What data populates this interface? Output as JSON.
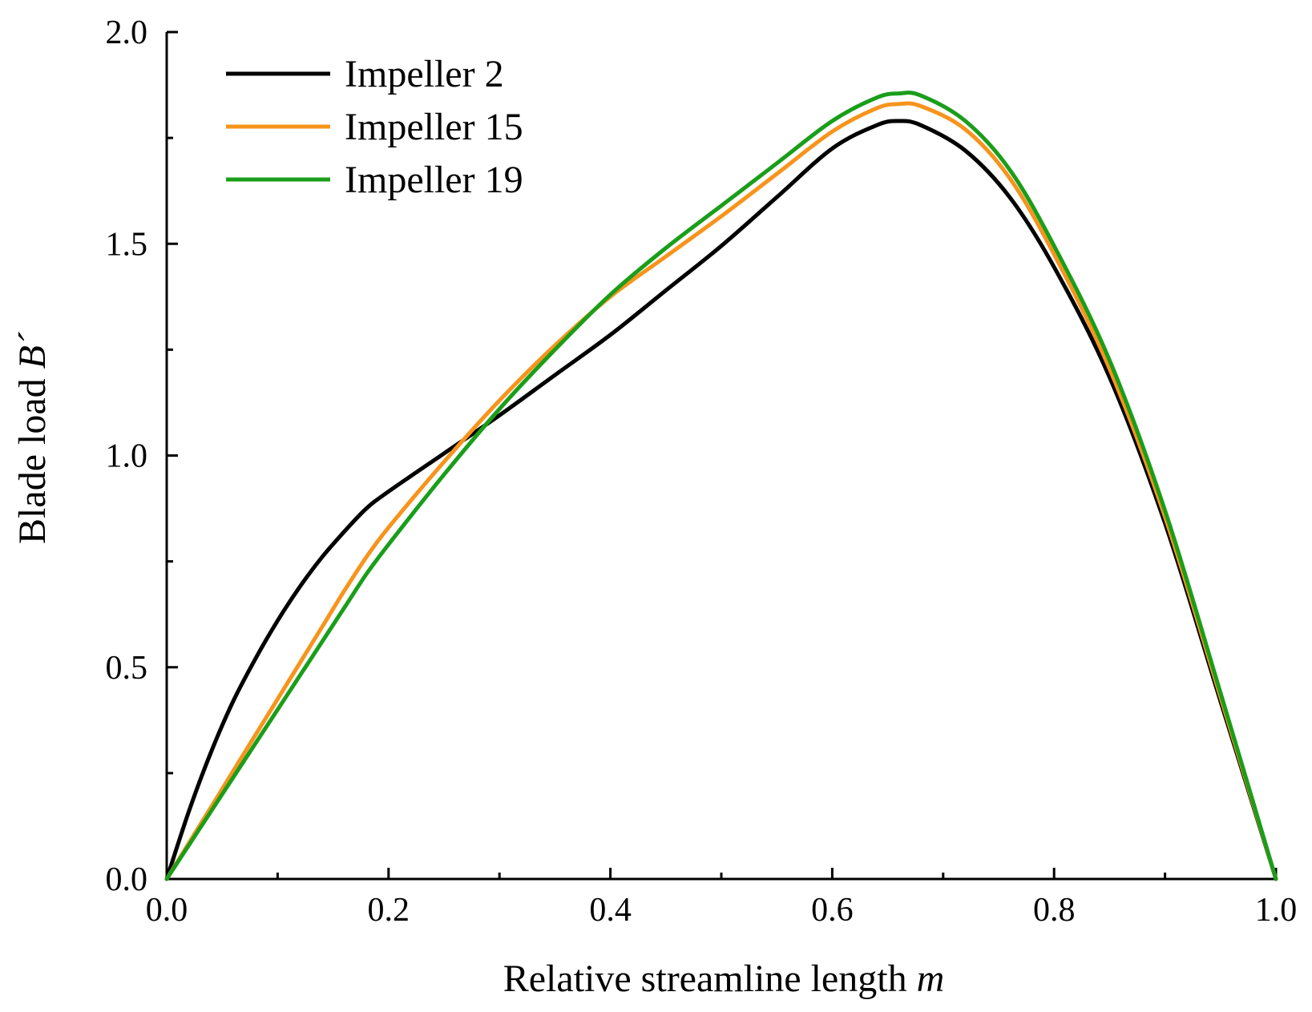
{
  "chart_data": {
    "type": "line",
    "title": "",
    "xlabel": "Relative streamline length",
    "xlabel_var": "m",
    "ylabel": "Blade load",
    "ylabel_var": "B´",
    "xlim": [
      0,
      1
    ],
    "ylim": [
      0,
      2
    ],
    "xticks": [
      0.0,
      0.2,
      0.4,
      0.6,
      0.8,
      1.0
    ],
    "xtick_labels": [
      "0.0",
      "0.2",
      "0.4",
      "0.6",
      "0.8",
      "1.0"
    ],
    "xminor": [
      0.1,
      0.3,
      0.5,
      0.7,
      0.9
    ],
    "yticks": [
      0.0,
      0.5,
      1.0,
      1.5,
      2.0
    ],
    "ytick_labels": [
      "0.0",
      "0.5",
      "1.0",
      "1.5",
      "2.0"
    ],
    "yminor": [
      0.25,
      0.75,
      1.25,
      1.75
    ],
    "grid": false,
    "legend_position": "top-left",
    "x": [
      0,
      0.02,
      0.04,
      0.06,
      0.08,
      0.1,
      0.12,
      0.14,
      0.16,
      0.18,
      0.2,
      0.25,
      0.3,
      0.35,
      0.4,
      0.45,
      0.5,
      0.55,
      0.6,
      0.64,
      0.66,
      0.68,
      0.72,
      0.76,
      0.8,
      0.85,
      0.9,
      0.95,
      1.0
    ],
    "series": [
      {
        "name": "Impeller 2",
        "color": "#000000",
        "values": [
          0,
          0.16,
          0.3,
          0.42,
          0.52,
          0.61,
          0.69,
          0.76,
          0.82,
          0.875,
          0.915,
          1.005,
          1.095,
          1.19,
          1.285,
          1.39,
          1.495,
          1.61,
          1.725,
          1.78,
          1.79,
          1.78,
          1.72,
          1.61,
          1.445,
          1.185,
          0.84,
          0.42,
          0
        ]
      },
      {
        "name": "Impeller 15",
        "color": "#F7941D",
        "values": [
          0,
          0.085,
          0.17,
          0.255,
          0.34,
          0.425,
          0.51,
          0.595,
          0.68,
          0.76,
          0.83,
          0.985,
          1.13,
          1.26,
          1.375,
          1.47,
          1.565,
          1.665,
          1.765,
          1.82,
          1.83,
          1.825,
          1.77,
          1.655,
          1.475,
          1.205,
          0.855,
          0.43,
          0
        ]
      },
      {
        "name": "Impeller 19",
        "color": "#1A9E1A",
        "values": [
          0,
          0.08,
          0.16,
          0.24,
          0.32,
          0.4,
          0.48,
          0.56,
          0.64,
          0.72,
          0.79,
          0.955,
          1.11,
          1.25,
          1.38,
          1.49,
          1.59,
          1.69,
          1.79,
          1.845,
          1.855,
          1.85,
          1.79,
          1.675,
          1.495,
          1.225,
          0.87,
          0.44,
          0
        ]
      }
    ]
  }
}
